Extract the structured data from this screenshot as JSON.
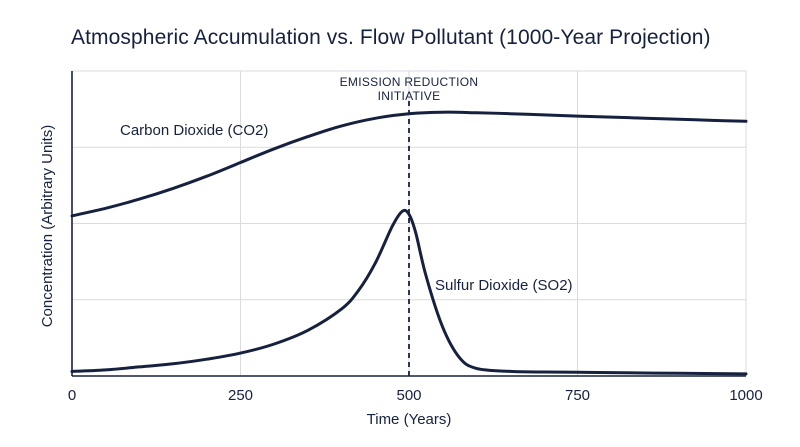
{
  "chart_data": {
    "type": "line",
    "title": "Atmospheric Accumulation vs. Flow Pollutant (1000-Year Projection)",
    "xlabel": "Time (Years)",
    "ylabel": "Concentration (Arbitrary Units)",
    "xlim": [
      0,
      1000
    ],
    "ylim": [
      0,
      100
    ],
    "x_ticks": [
      "0",
      "250",
      "500",
      "750",
      "1000"
    ],
    "y_ticks_labeled": false,
    "grid": true,
    "legend": "none",
    "series": [
      {
        "name": "Carbon Dioxide (CO2)",
        "color": "#16213f",
        "x": [
          0,
          50,
          100,
          150,
          200,
          250,
          300,
          350,
          400,
          450,
          500,
          550,
          600,
          650,
          700,
          750,
          800,
          850,
          900,
          950,
          1000
        ],
        "y": [
          52.5,
          55,
          58,
          61.5,
          65.5,
          70,
          74.5,
          78.5,
          82,
          84.5,
          86,
          86.5,
          86.3,
          86,
          85.6,
          85.2,
          84.9,
          84.5,
          84.2,
          83.8,
          83.5
        ]
      },
      {
        "name": "Sulfur Dioxide (SO2)",
        "color": "#16213f",
        "x": [
          0,
          50,
          100,
          150,
          200,
          250,
          300,
          350,
          400,
          425,
          450,
          475,
          490,
          500,
          510,
          525,
          550,
          575,
          600,
          650,
          700,
          750,
          800,
          900,
          1000
        ],
        "y": [
          1.5,
          2,
          3,
          4,
          5.5,
          7.5,
          10.5,
          15,
          22,
          28,
          37,
          49,
          54,
          53,
          47,
          33,
          16,
          6,
          2.5,
          1.5,
          1.3,
          1.2,
          1.1,
          0.9,
          0.7
        ]
      }
    ],
    "annotations": [
      {
        "type": "vline",
        "x": 500,
        "style": "dashed",
        "lines": [
          "EMISSION REDUCTION",
          "INITIATIVE"
        ]
      }
    ]
  }
}
